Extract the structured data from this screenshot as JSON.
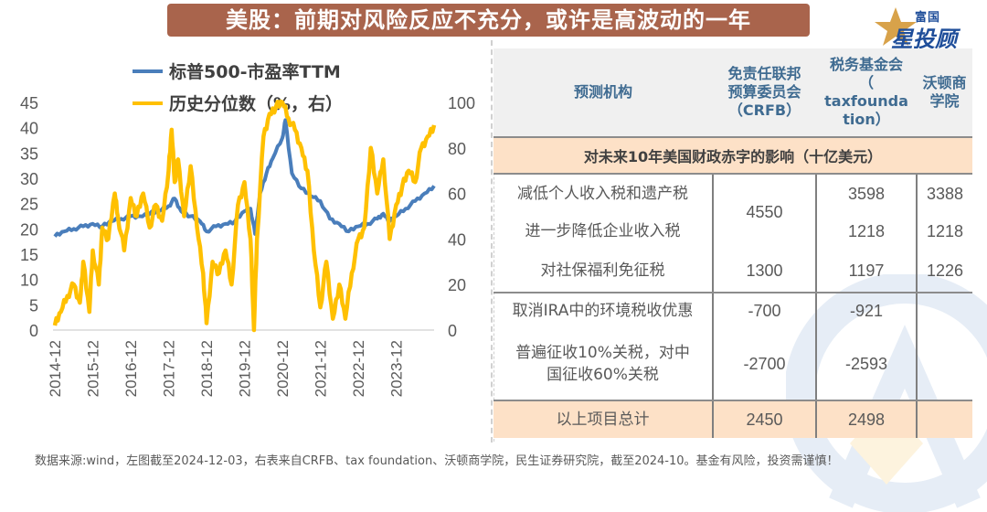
{
  "header": {
    "title": "美股：前期对风险反应不充分，或许是高波动的一年",
    "brand_top": "富国",
    "brand_main": "星投顾"
  },
  "chart_data": {
    "type": "line",
    "title": "",
    "xlabel": "",
    "ylabel_left": "",
    "ylabel_right": "",
    "x_tick_labels": [
      "2014-12",
      "2015-12",
      "2016-12",
      "2017-12",
      "2018-12",
      "2019-12",
      "2020-12",
      "2021-12",
      "2022-12",
      "2023-12"
    ],
    "x_range": [
      "2014-12",
      "2024-12"
    ],
    "y_left": {
      "min": 0,
      "max": 45,
      "ticks": [
        0,
        5,
        10,
        15,
        20,
        25,
        30,
        35,
        40,
        45
      ]
    },
    "y_right": {
      "min": 0,
      "max": 100,
      "ticks": [
        0,
        20,
        40,
        60,
        80,
        100
      ]
    },
    "legend_position": "top",
    "grid": false,
    "series": [
      {
        "name": "标普500-市盈率TTM",
        "axis": "left",
        "color": "#4a7ebb",
        "x": [
          2014.92,
          2015.17,
          2015.42,
          2015.67,
          2015.92,
          2016.17,
          2016.42,
          2016.67,
          2016.92,
          2017.17,
          2017.42,
          2017.67,
          2017.92,
          2018.08,
          2018.25,
          2018.5,
          2018.75,
          2018.92,
          2019.17,
          2019.42,
          2019.67,
          2019.92,
          2020.08,
          2020.2,
          2020.33,
          2020.5,
          2020.67,
          2020.92,
          2021.0,
          2021.17,
          2021.42,
          2021.67,
          2021.92,
          2022.17,
          2022.42,
          2022.67,
          2022.92,
          2023.17,
          2023.42,
          2023.58,
          2023.75,
          2023.92,
          2024.17,
          2024.42,
          2024.67,
          2024.92
        ],
        "values": [
          18.5,
          19.5,
          20.0,
          20.5,
          21.0,
          20.5,
          21.5,
          22.0,
          22.5,
          22.5,
          23.0,
          23.5,
          24.5,
          26.0,
          23.5,
          22.5,
          21.5,
          19.5,
          20.5,
          21.0,
          21.5,
          23.5,
          24.0,
          19.0,
          27.0,
          31.0,
          34.0,
          38.0,
          41.5,
          31.0,
          28.0,
          26.5,
          25.5,
          22.0,
          21.0,
          19.5,
          20.5,
          21.0,
          22.0,
          23.0,
          21.5,
          22.5,
          24.0,
          25.5,
          27.0,
          28.5
        ]
      },
      {
        "name": "历史分位数（%，右）",
        "axis": "right",
        "color": "#ffc000",
        "x": [
          2014.92,
          2015.08,
          2015.25,
          2015.42,
          2015.58,
          2015.67,
          2015.83,
          2015.92,
          2016.08,
          2016.17,
          2016.33,
          2016.5,
          2016.58,
          2016.75,
          2016.92,
          2017.08,
          2017.25,
          2017.42,
          2017.58,
          2017.75,
          2017.92,
          2018.0,
          2018.08,
          2018.17,
          2018.33,
          2018.5,
          2018.67,
          2018.83,
          2018.92,
          2019.08,
          2019.25,
          2019.42,
          2019.58,
          2019.75,
          2019.92,
          2020.08,
          2020.17,
          2020.25,
          2020.42,
          2020.58,
          2020.75,
          2020.92,
          2021.08,
          2021.25,
          2021.42,
          2021.58,
          2021.75,
          2021.92,
          2022.08,
          2022.25,
          2022.42,
          2022.58,
          2022.75,
          2022.92,
          2023.08,
          2023.25,
          2023.42,
          2023.58,
          2023.75,
          2023.92,
          2024.08,
          2024.25,
          2024.42,
          2024.58,
          2024.75,
          2024.92
        ],
        "values": [
          2,
          8,
          15,
          20,
          12,
          30,
          8,
          35,
          20,
          45,
          40,
          60,
          50,
          35,
          58,
          50,
          60,
          45,
          55,
          48,
          70,
          88,
          65,
          75,
          50,
          72,
          45,
          25,
          3,
          30,
          25,
          35,
          20,
          55,
          65,
          40,
          0,
          40,
          85,
          95,
          98,
          100,
          93,
          88,
          80,
          70,
          35,
          10,
          30,
          5,
          20,
          5,
          25,
          40,
          45,
          80,
          60,
          75,
          40,
          55,
          63,
          70,
          65,
          80,
          85,
          90
        ]
      }
    ]
  },
  "table": {
    "headers": [
      "预测机构",
      "免责任联邦预算委员会（CRFB）",
      "税务基金会（taxfoundation）",
      "沃顿商学院"
    ],
    "header_lines": {
      "col0": [
        "预测机构"
      ],
      "col1": [
        "免责任联邦",
        "预算委员会",
        "（CRFB）"
      ],
      "col2": [
        "税务基金会",
        "（",
        "taxfounda",
        "tion）"
      ],
      "col3": [
        "沃顿商",
        "学院"
      ]
    },
    "section_label": "对未来10年美国财政赤字的影响（十亿美元）",
    "rows": [
      {
        "item": "减低个人收入税和遗产税",
        "crfb": "4550",
        "taxfoundation": "3598",
        "wharton": "3388"
      },
      {
        "item": "进一步降低企业收入税",
        "crfb": "",
        "taxfoundation": "1218",
        "wharton": "1218"
      },
      {
        "item": "对社保福利免征税",
        "crfb": "1300",
        "taxfoundation": "1197",
        "wharton": "1226"
      },
      {
        "item": "取消IRA中的环境税收优惠",
        "crfb": "-700",
        "taxfoundation": "-921",
        "wharton": ""
      },
      {
        "item_lines": [
          "普遍征收10%关税，对中",
          "国征收60%关税"
        ],
        "crfb": "-2700",
        "taxfoundation": "-2593",
        "wharton": ""
      }
    ],
    "total": {
      "item": "以上项目总计",
      "crfb": "2450",
      "taxfoundation": "2498",
      "wharton": ""
    }
  },
  "footnote": "数据来源:wind，左图截至2024-12-03，右表来自CRFB、tax foundation、沃顿商学院，民生证券研究院，截至2024-10。基金有风险，投资需谨慎！",
  "colors": {
    "banner": "#a9644c",
    "header_text": "#3f6b91",
    "band": "#fde1c7",
    "pe_line": "#4a7ebb",
    "percentile_line": "#ffc000"
  }
}
